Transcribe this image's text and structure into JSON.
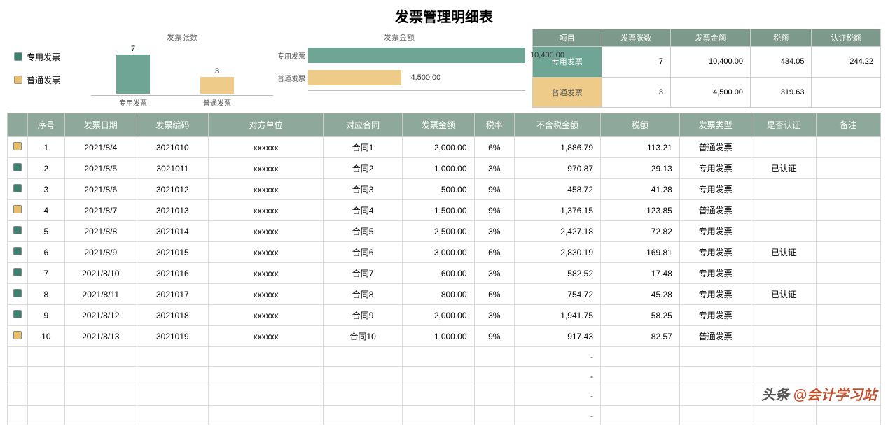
{
  "title": "发票管理明细表",
  "legend": {
    "special": "专用发票",
    "normal": "普通发票"
  },
  "colors": {
    "special": "#6fa595",
    "normal": "#eecb88",
    "header": "#8fa89c",
    "summary_header": "#7d998c"
  },
  "chart_count": {
    "caption": "发票张数",
    "bars": [
      {
        "label": "专用发票",
        "value": 7,
        "color": "#6fa595",
        "h": 56
      },
      {
        "label": "普通发票",
        "value": 3,
        "color": "#eecb88",
        "h": 24
      }
    ]
  },
  "chart_amount": {
    "caption": "发票金额",
    "max": 10400,
    "bars": [
      {
        "label": "专用发票",
        "value": "10,400.00",
        "pct": 100,
        "cls": "green"
      },
      {
        "label": "普通发票",
        "value": "4,500.00",
        "pct": 43,
        "cls": "yellow"
      }
    ]
  },
  "summary": {
    "headers": [
      "项目",
      "发票张数",
      "发票金额",
      "税额",
      "认证税额"
    ],
    "rows": [
      {
        "cls": "row-green",
        "cells": [
          "专用发票",
          "7",
          "10,400.00",
          "434.05",
          "244.22"
        ]
      },
      {
        "cls": "row-yellow",
        "cells": [
          "普通发票",
          "3",
          "4,500.00",
          "319.63",
          ""
        ]
      }
    ]
  },
  "table": {
    "headers": [
      "",
      "序号",
      "发票日期",
      "发票编码",
      "对方单位",
      "对应合同",
      "发票金额",
      "税率",
      "不含税金额",
      "税额",
      "发票类型",
      "是否认证",
      "备注"
    ],
    "rows": [
      {
        "dot": "yellow",
        "seq": "1",
        "date": "2021/8/4",
        "code": "3021010",
        "party": "xxxxxx",
        "contract": "合同1",
        "amt": "2,000.00",
        "rate": "6%",
        "net": "1,886.79",
        "tax": "113.21",
        "type": "普通发票",
        "cert": "",
        "note": ""
      },
      {
        "dot": "green",
        "seq": "2",
        "date": "2021/8/5",
        "code": "3021011",
        "party": "xxxxxx",
        "contract": "合同2",
        "amt": "1,000.00",
        "rate": "3%",
        "net": "970.87",
        "tax": "29.13",
        "type": "专用发票",
        "cert": "已认证",
        "note": ""
      },
      {
        "dot": "green",
        "seq": "3",
        "date": "2021/8/6",
        "code": "3021012",
        "party": "xxxxxx",
        "contract": "合同3",
        "amt": "500.00",
        "rate": "9%",
        "net": "458.72",
        "tax": "41.28",
        "type": "专用发票",
        "cert": "",
        "note": ""
      },
      {
        "dot": "yellow",
        "seq": "4",
        "date": "2021/8/7",
        "code": "3021013",
        "party": "xxxxxx",
        "contract": "合同4",
        "amt": "1,500.00",
        "rate": "9%",
        "net": "1,376.15",
        "tax": "123.85",
        "type": "普通发票",
        "cert": "",
        "note": ""
      },
      {
        "dot": "green",
        "seq": "5",
        "date": "2021/8/8",
        "code": "3021014",
        "party": "xxxxxx",
        "contract": "合同5",
        "amt": "2,500.00",
        "rate": "3%",
        "net": "2,427.18",
        "tax": "72.82",
        "type": "专用发票",
        "cert": "",
        "note": ""
      },
      {
        "dot": "green",
        "seq": "6",
        "date": "2021/8/9",
        "code": "3021015",
        "party": "xxxxxx",
        "contract": "合同6",
        "amt": "3,000.00",
        "rate": "6%",
        "net": "2,830.19",
        "tax": "169.81",
        "type": "专用发票",
        "cert": "已认证",
        "note": ""
      },
      {
        "dot": "green",
        "seq": "7",
        "date": "2021/8/10",
        "code": "3021016",
        "party": "xxxxxx",
        "contract": "合同7",
        "amt": "600.00",
        "rate": "3%",
        "net": "582.52",
        "tax": "17.48",
        "type": "专用发票",
        "cert": "",
        "note": ""
      },
      {
        "dot": "green",
        "seq": "8",
        "date": "2021/8/11",
        "code": "3021017",
        "party": "xxxxxx",
        "contract": "合同8",
        "amt": "800.00",
        "rate": "6%",
        "net": "754.72",
        "tax": "45.28",
        "type": "专用发票",
        "cert": "已认证",
        "note": ""
      },
      {
        "dot": "green",
        "seq": "9",
        "date": "2021/8/12",
        "code": "3021018",
        "party": "xxxxxx",
        "contract": "合同9",
        "amt": "2,000.00",
        "rate": "3%",
        "net": "1,941.75",
        "tax": "58.25",
        "type": "专用发票",
        "cert": "",
        "note": ""
      },
      {
        "dot": "yellow",
        "seq": "10",
        "date": "2021/8/13",
        "code": "3021019",
        "party": "xxxxxx",
        "contract": "合同10",
        "amt": "1,000.00",
        "rate": "9%",
        "net": "917.43",
        "tax": "82.57",
        "type": "普通发票",
        "cert": "",
        "note": ""
      }
    ],
    "empty_rows": 4
  },
  "watermark": {
    "prefix": "头条",
    "highlight": "@会计学习站"
  }
}
